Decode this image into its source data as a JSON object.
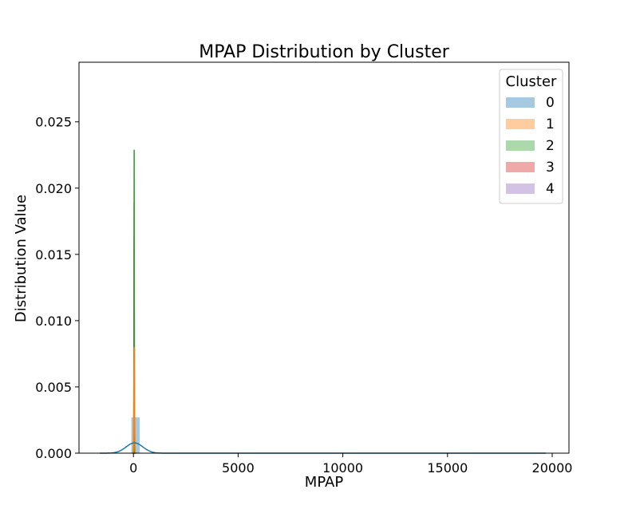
{
  "chart_data": {
    "type": "area",
    "title": "MPAP Distribution by Cluster",
    "xlabel": "MPAP",
    "ylabel": "Distribution Value",
    "xlim": [
      -2600,
      20800
    ],
    "ylim": [
      0,
      0.0295
    ],
    "xticks": [
      0,
      5000,
      10000,
      15000,
      20000
    ],
    "xtick_labels": [
      "0",
      "5000",
      "10000",
      "15000",
      "20000"
    ],
    "yticks": [
      0,
      0.005,
      0.01,
      0.015,
      0.02,
      0.025
    ],
    "ytick_labels": [
      "0.000",
      "0.005",
      "0.010",
      "0.015",
      "0.020",
      "0.025"
    ],
    "grid": false,
    "legend": {
      "title": "Cluster",
      "placement": "top-right"
    },
    "series": [
      {
        "name": "0",
        "color": "#1f77b4",
        "hist": {
          "bins": [
            [
              -100,
              300,
              0.0027
            ]
          ]
        },
        "kde": {
          "peak_x": 50,
          "peak_y": 0.00078,
          "bandwidth": 400,
          "x_range": [
            -1600,
            19700
          ]
        }
      },
      {
        "name": "1",
        "color": "#ff7f0e",
        "hist": {
          "bins": [
            [
              10,
              60,
              0.0075
            ]
          ]
        },
        "kde": {
          "peak_x": 35,
          "peak_y": 0.008,
          "bandwidth": 16,
          "x_range": [
            -60,
            130
          ]
        }
      },
      {
        "name": "2",
        "color": "#2ca02c",
        "hist": {
          "bins": [
            [
              10,
              60,
              0.0095
            ]
          ]
        },
        "kde": {
          "peak_x": 35,
          "peak_y": 0.0229,
          "bandwidth": 5,
          "x_range": [
            5,
            70
          ]
        }
      },
      {
        "name": "3",
        "color": "#d62728",
        "hist": {
          "bins": [
            [
              10,
              60,
              0.01
            ]
          ]
        },
        "kde": {
          "peak_x": 35,
          "peak_y": 0.0189,
          "bandwidth": 6,
          "x_range": [
            0,
            75
          ]
        }
      },
      {
        "name": "4",
        "color": "#9467bd",
        "hist": {
          "bins": [
            [
              10,
              60,
              0.011
            ]
          ]
        },
        "kde": {
          "peak_x": 35,
          "peak_y": 0.0165,
          "bandwidth": 7,
          "x_range": [
            0,
            75
          ]
        }
      }
    ]
  }
}
